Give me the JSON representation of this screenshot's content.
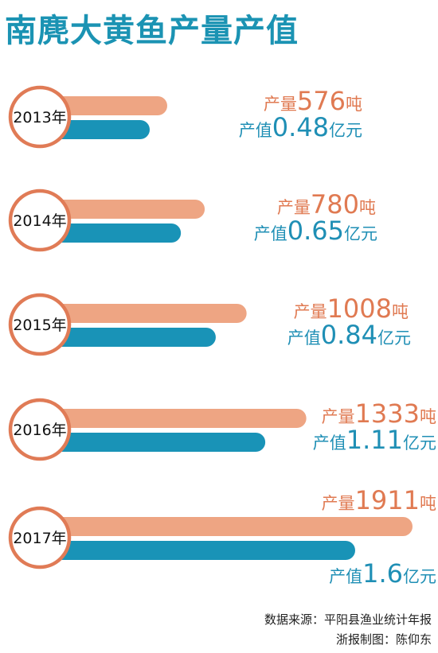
{
  "title": "南麂大黄鱼产量产值",
  "colors": {
    "title": "#1b93b3",
    "output_bar": "#eea583",
    "value_bar": "#1993b7",
    "circle_border": "#e07b56",
    "output_text": "#e07a52",
    "value_text": "#1f8fb5"
  },
  "chart_data": {
    "type": "bar",
    "orientation": "horizontal",
    "title": "南麂大黄鱼产量产值",
    "categories": [
      "2013年",
      "2014年",
      "2015年",
      "2016年",
      "2017年"
    ],
    "series": [
      {
        "name": "产量",
        "unit": "吨",
        "values": [
          576,
          780,
          1008,
          1333,
          1911
        ],
        "labels": [
          "576",
          "780",
          "1008",
          "1333",
          "1911"
        ]
      },
      {
        "name": "产值",
        "unit": "亿元",
        "values": [
          0.48,
          0.65,
          0.84,
          1.11,
          1.6
        ],
        "labels": [
          "0.48",
          "0.65",
          "0.84",
          "1.11",
          "1.6"
        ]
      }
    ]
  },
  "footer": {
    "source": "数据来源：平阳县渔业统计年报",
    "credit": "浙报制图：陈仰东"
  }
}
